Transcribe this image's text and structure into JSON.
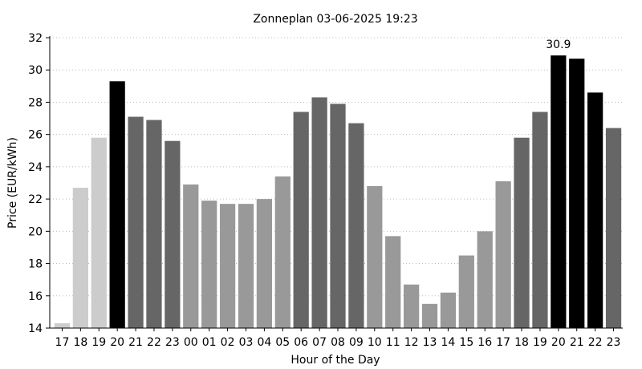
{
  "chart_data": {
    "type": "bar",
    "title": "Zonneplan 03-06-2025 19:23",
    "xlabel": "Hour of the Day",
    "ylabel": "Price (EUR/kWh)",
    "ylim": [
      14,
      32
    ],
    "yticks": [
      14,
      16,
      18,
      20,
      22,
      24,
      26,
      28,
      30,
      32
    ],
    "grid": "horizontal dotted",
    "categories": [
      "17",
      "18",
      "19",
      "20",
      "21",
      "22",
      "23",
      "00",
      "01",
      "02",
      "03",
      "04",
      "05",
      "06",
      "07",
      "08",
      "09",
      "10",
      "11",
      "12",
      "13",
      "14",
      "15",
      "16",
      "17",
      "18",
      "19",
      "20",
      "21",
      "22",
      "23"
    ],
    "values": [
      14.3,
      22.7,
      25.8,
      29.3,
      27.1,
      26.9,
      25.6,
      22.9,
      21.9,
      21.7,
      21.7,
      22.0,
      23.4,
      27.4,
      28.3,
      27.9,
      26.7,
      22.8,
      19.7,
      16.7,
      15.5,
      16.2,
      18.5,
      20.0,
      23.1,
      25.8,
      27.4,
      30.9,
      30.7,
      28.6,
      26.4
    ],
    "bar_colors": [
      "#cccccc",
      "#cccccc",
      "#cccccc",
      "#000000",
      "#666666",
      "#666666",
      "#666666",
      "#999999",
      "#999999",
      "#999999",
      "#999999",
      "#999999",
      "#999999",
      "#666666",
      "#666666",
      "#666666",
      "#666666",
      "#999999",
      "#999999",
      "#999999",
      "#999999",
      "#999999",
      "#999999",
      "#999999",
      "#999999",
      "#666666",
      "#666666",
      "#000000",
      "#000000",
      "#000000",
      "#666666"
    ],
    "annotations": [
      {
        "category_index": 27,
        "text": "30.9"
      }
    ]
  }
}
